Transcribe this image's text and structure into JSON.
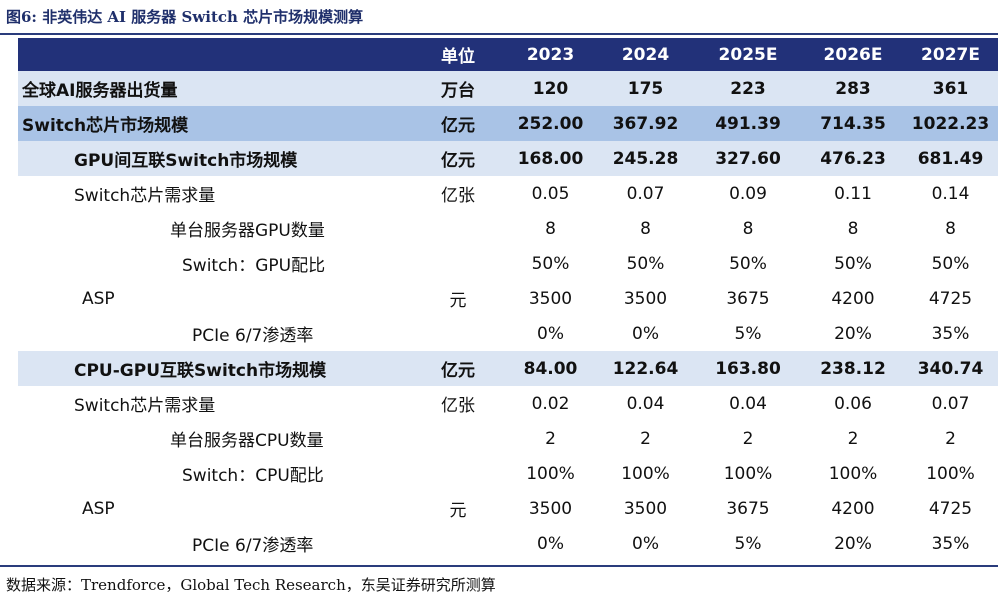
{
  "title": "图6:  非英伟达 AI 服务器 Switch 芯片市场规模测算",
  "source": "数据来源：Trendforce，Global Tech Research，东吴证券研究所测算",
  "header": {
    "unit": "单位",
    "years": [
      "2023",
      "2024",
      "2025E",
      "2026E",
      "2027E"
    ]
  },
  "rows": [
    {
      "label": "全球AI服务器出货量",
      "unit": "万台",
      "values": [
        "120",
        "175",
        "223",
        "283",
        "361"
      ]
    },
    {
      "label": "Switch芯片市场规模",
      "unit": "亿元",
      "values": [
        "252.00",
        "367.92",
        "491.39",
        "714.35",
        "1022.23"
      ]
    },
    {
      "label": "GPU间互联Switch市场规模",
      "unit": "亿元",
      "values": [
        "168.00",
        "245.28",
        "327.60",
        "476.23",
        "681.49"
      ]
    },
    {
      "label": "Switch芯片需求量",
      "unit": "亿张",
      "values": [
        "0.05",
        "0.07",
        "0.09",
        "0.11",
        "0.14"
      ]
    },
    {
      "label": "单台服务器GPU数量",
      "unit": "",
      "values": [
        "8",
        "8",
        "8",
        "8",
        "8"
      ]
    },
    {
      "label": "Switch：GPU配比",
      "unit": "",
      "values": [
        "50%",
        "50%",
        "50%",
        "50%",
        "50%"
      ]
    },
    {
      "label": "ASP",
      "unit": "元",
      "values": [
        "3500",
        "3500",
        "3675",
        "4200",
        "4725"
      ]
    },
    {
      "label": "PCIe 6/7渗透率",
      "unit": "",
      "values": [
        "0%",
        "0%",
        "5%",
        "20%",
        "35%"
      ]
    },
    {
      "label": "CPU-GPU互联Switch市场规模",
      "unit": "亿元",
      "values": [
        "84.00",
        "122.64",
        "163.80",
        "238.12",
        "340.74"
      ]
    },
    {
      "label": "Switch芯片需求量",
      "unit": "亿张",
      "values": [
        "0.02",
        "0.04",
        "0.04",
        "0.06",
        "0.07"
      ]
    },
    {
      "label": "单台服务器CPU数量",
      "unit": "",
      "values": [
        "2",
        "2",
        "2",
        "2",
        "2"
      ]
    },
    {
      "label": "Switch：CPU配比",
      "unit": "",
      "values": [
        "100%",
        "100%",
        "100%",
        "100%",
        "100%"
      ]
    },
    {
      "label": "ASP",
      "unit": "元",
      "values": [
        "3500",
        "3500",
        "3675",
        "4200",
        "4725"
      ]
    },
    {
      "label": "PCIe 6/7渗透率",
      "unit": "",
      "values": [
        "0%",
        "0%",
        "5%",
        "20%",
        "35%"
      ]
    }
  ]
}
